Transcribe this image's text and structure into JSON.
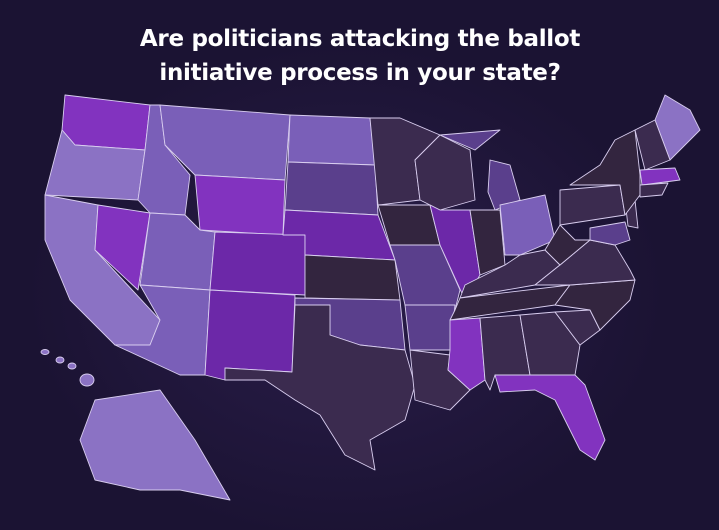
{
  "header": {
    "title": "Are politicians attacking the ballot initiative process in your state?"
  }
}
